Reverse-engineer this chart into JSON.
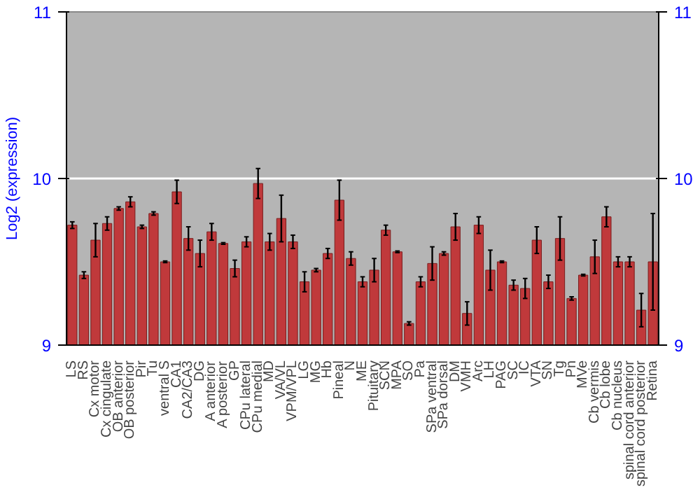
{
  "chart_data": {
    "type": "bar",
    "ylabel": "Log2 (expression)",
    "categories": [
      "LS",
      "RS",
      "Cx motor",
      "Cx cingulate",
      "OB anterior",
      "OB posterior",
      "Pir",
      "Tu",
      "ventral S",
      "CA1",
      "CA2/CA3",
      "DG",
      "A anterior",
      "A posterior",
      "GP",
      "CPu lateral",
      "CPu medial",
      "MD",
      "VA/VL",
      "VPM/VPL",
      "LG",
      "MG",
      "Hb",
      "Pineal",
      "N",
      "ME",
      "Pituitary",
      "SCN",
      "MPA",
      "SO",
      "Pa",
      "SPa ventral",
      "SPa dorsal",
      "DM",
      "VMH",
      "Arc",
      "LH",
      "PAG",
      "SC",
      "IC",
      "VTA",
      "SN",
      "Tg",
      "Pn",
      "MVe",
      "Cb vermis",
      "Cb lobe",
      "Cb nucleus",
      "spinal cord anterior",
      "spinal cord posterior",
      "Retina"
    ],
    "values": [
      9.72,
      9.42,
      9.63,
      9.73,
      9.82,
      9.86,
      9.71,
      9.79,
      9.5,
      9.92,
      9.64,
      9.55,
      9.68,
      9.61,
      9.46,
      9.62,
      9.97,
      9.62,
      9.76,
      9.62,
      9.38,
      9.45,
      9.55,
      9.87,
      9.52,
      9.38,
      9.45,
      9.69,
      9.56,
      9.13,
      9.38,
      9.49,
      9.55,
      9.71,
      9.19,
      9.72,
      9.45,
      9.5,
      9.36,
      9.34,
      9.63,
      9.38,
      9.64,
      9.28,
      9.42,
      9.53,
      9.77,
      9.5,
      9.5,
      9.21,
      9.5
    ],
    "errors": [
      0.02,
      0.02,
      0.1,
      0.04,
      0.01,
      0.03,
      0.01,
      0.01,
      0.005,
      0.07,
      0.07,
      0.08,
      0.05,
      0.005,
      0.05,
      0.03,
      0.09,
      0.05,
      0.14,
      0.04,
      0.06,
      0.01,
      0.03,
      0.12,
      0.04,
      0.03,
      0.07,
      0.03,
      0.005,
      0.01,
      0.03,
      0.1,
      0.01,
      0.08,
      0.07,
      0.05,
      0.12,
      0.005,
      0.03,
      0.06,
      0.08,
      0.04,
      0.13,
      0.01,
      0.005,
      0.1,
      0.06,
      0.03,
      0.03,
      0.1,
      0.29
    ],
    "color": "#c0393b",
    "ylim": [
      9,
      11
    ],
    "yticks": [
      9,
      10,
      11
    ],
    "y2lim": [
      9,
      11
    ],
    "y2ticks": [
      9,
      10,
      11
    ],
    "grid": "y"
  }
}
